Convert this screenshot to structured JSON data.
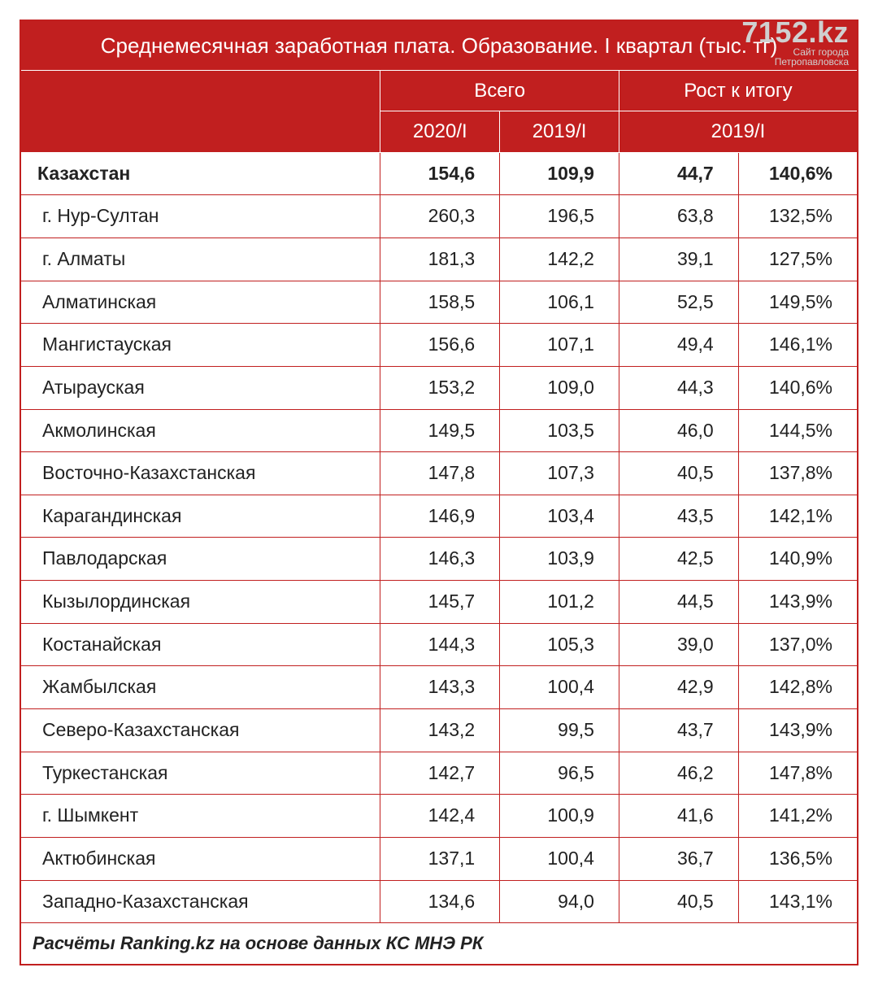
{
  "watermark": {
    "big": "7152.kz",
    "small": "Сайт города\nПетропавловска"
  },
  "table": {
    "type": "table",
    "title": "Среднемесячная заработная плата. Образование. I квартал (тыс. тг)",
    "header_bg": "#c11f1f",
    "header_fg": "#ffffff",
    "border_color": "#c11f1f",
    "body_fontsize": 23,
    "header_fontsize": 26,
    "column_align": [
      "left",
      "right",
      "right",
      "right",
      "right"
    ],
    "groups": {
      "blank": "",
      "total": "Всего",
      "growth": "Рост к итогу"
    },
    "subheaders": {
      "y2020": "2020/I",
      "y2019": "2019/I",
      "growth_period": "2019/I"
    },
    "columns": [
      "region",
      "2020/I",
      "2019/I",
      "growth_abs",
      "growth_pct"
    ],
    "rows": [
      {
        "region": "Казахстан",
        "v2020": "154,6",
        "v2019": "109,9",
        "gabs": "44,7",
        "gpct": "140,6%",
        "bold": true
      },
      {
        "region": "г. Нур-Султан",
        "v2020": "260,3",
        "v2019": "196,5",
        "gabs": "63,8",
        "gpct": "132,5%",
        "bold": false
      },
      {
        "region": "г. Алматы",
        "v2020": "181,3",
        "v2019": "142,2",
        "gabs": "39,1",
        "gpct": "127,5%",
        "bold": false
      },
      {
        "region": "Алматинская",
        "v2020": "158,5",
        "v2019": "106,1",
        "gabs": "52,5",
        "gpct": "149,5%",
        "bold": false
      },
      {
        "region": "Мангистауская",
        "v2020": "156,6",
        "v2019": "107,1",
        "gabs": "49,4",
        "gpct": "146,1%",
        "bold": false
      },
      {
        "region": "Атырауская",
        "v2020": "153,2",
        "v2019": "109,0",
        "gabs": "44,3",
        "gpct": "140,6%",
        "bold": false
      },
      {
        "region": "Акмолинская",
        "v2020": "149,5",
        "v2019": "103,5",
        "gabs": "46,0",
        "gpct": "144,5%",
        "bold": false
      },
      {
        "region": "Восточно-Казахстанская",
        "v2020": "147,8",
        "v2019": "107,3",
        "gabs": "40,5",
        "gpct": "137,8%",
        "bold": false
      },
      {
        "region": "Карагандинская",
        "v2020": "146,9",
        "v2019": "103,4",
        "gabs": "43,5",
        "gpct": "142,1%",
        "bold": false
      },
      {
        "region": "Павлодарская",
        "v2020": "146,3",
        "v2019": "103,9",
        "gabs": "42,5",
        "gpct": "140,9%",
        "bold": false
      },
      {
        "region": "Кызылординская",
        "v2020": "145,7",
        "v2019": "101,2",
        "gabs": "44,5",
        "gpct": "143,9%",
        "bold": false
      },
      {
        "region": "Костанайская",
        "v2020": "144,3",
        "v2019": "105,3",
        "gabs": "39,0",
        "gpct": "137,0%",
        "bold": false
      },
      {
        "region": "Жамбылская",
        "v2020": "143,3",
        "v2019": "100,4",
        "gabs": "42,9",
        "gpct": "142,8%",
        "bold": false
      },
      {
        "region": "Северо-Казахстанская",
        "v2020": "143,2",
        "v2019": "99,5",
        "gabs": "43,7",
        "gpct": "143,9%",
        "bold": false
      },
      {
        "region": "Туркестанская",
        "v2020": "142,7",
        "v2019": "96,5",
        "gabs": "46,2",
        "gpct": "147,8%",
        "bold": false
      },
      {
        "region": "г. Шымкент",
        "v2020": "142,4",
        "v2019": "100,9",
        "gabs": "41,6",
        "gpct": "141,2%",
        "bold": false
      },
      {
        "region": "Актюбинская",
        "v2020": "137,1",
        "v2019": "100,4",
        "gabs": "36,7",
        "gpct": "136,5%",
        "bold": false
      },
      {
        "region": "Западно-Казахстанская",
        "v2020": "134,6",
        "v2019": "94,0",
        "gabs": "40,5",
        "gpct": "143,1%",
        "bold": false
      }
    ],
    "footer": "Расчёты Ranking.kz на основе данных КС МНЭ РК"
  }
}
